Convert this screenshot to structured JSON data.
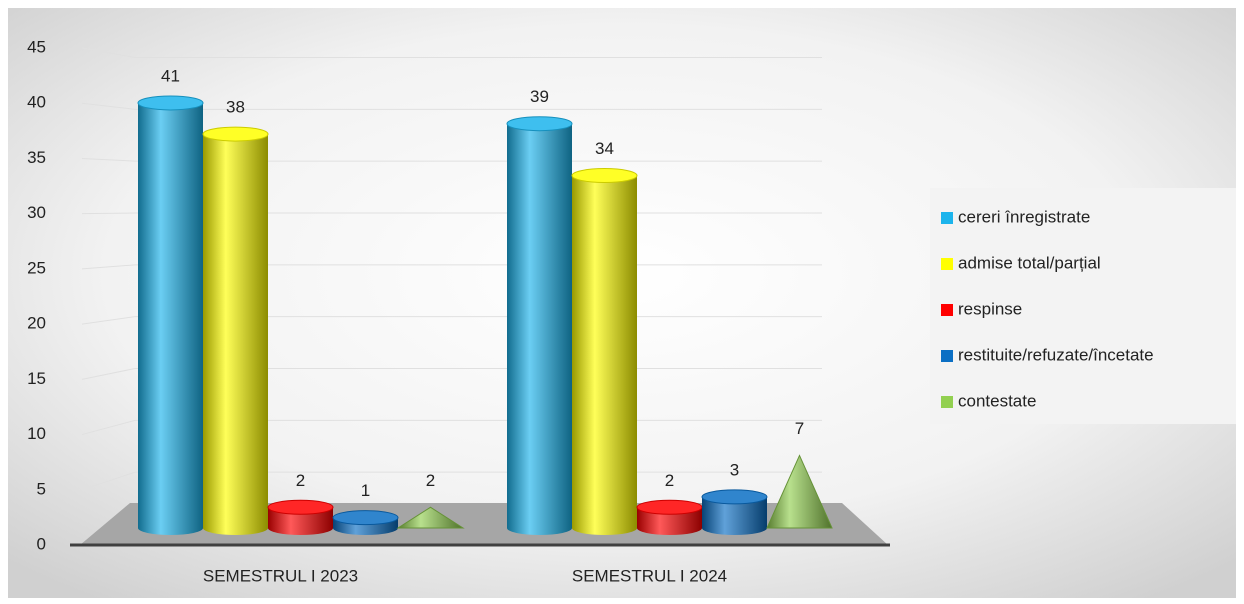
{
  "chart_data": {
    "type": "bar3d",
    "categories": [
      "SEMESTRUL I 2023",
      "SEMESTRUL I 2024"
    ],
    "series": [
      {
        "name": " cereri înregistrate",
        "color": "#1cb4ec",
        "values": [
          41,
          39
        ]
      },
      {
        "name": "admise total/parțial",
        "color": "#ffff00",
        "values": [
          38,
          34
        ]
      },
      {
        "name": "respinse",
        "color": "#ff0000",
        "values": [
          2,
          2
        ]
      },
      {
        "name": "restituite/refuzate/încetate",
        "color": "#0b6fc4",
        "values": [
          1,
          3
        ]
      },
      {
        "name": "contestate",
        "color": "#92d050",
        "values": [
          2,
          7
        ]
      }
    ],
    "ylim": [
      0,
      45
    ],
    "yticks": [
      0,
      5,
      10,
      15,
      20,
      25,
      30,
      35,
      40,
      45
    ],
    "grid": true,
    "legend": "right"
  }
}
